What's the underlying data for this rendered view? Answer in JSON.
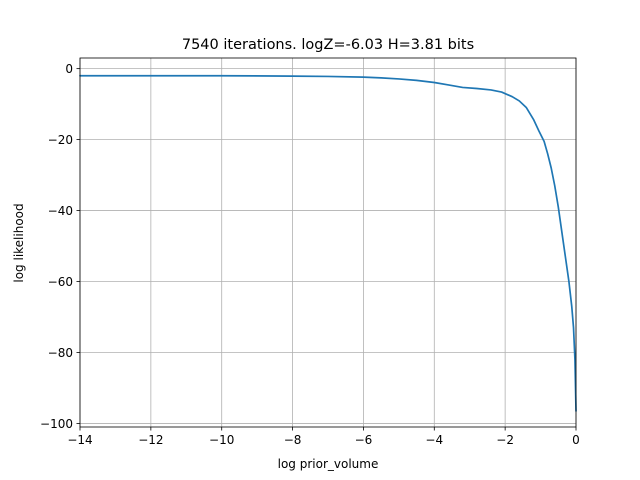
{
  "chart_data": {
    "type": "line",
    "title": "7540 iterations. logZ=-6.03 H=3.81 bits",
    "xlabel": "log prior_volume",
    "ylabel": "log likelihood",
    "xlim": [
      -14,
      0
    ],
    "ylim": [
      -101,
      3
    ],
    "xticks": [
      -14,
      -12,
      -10,
      -8,
      -6,
      -4,
      -2,
      0
    ],
    "yticks": [
      0,
      -20,
      -40,
      -60,
      -80,
      -100
    ],
    "grid": true,
    "color": "#1f77b4",
    "series": [
      {
        "x": [
          -14,
          -12,
          -10,
          -8,
          -7,
          -6,
          -5.5,
          -5,
          -4.5,
          -4,
          -3.6,
          -3.2,
          -2.8,
          -2.4,
          -2.1,
          -1.8,
          -1.6,
          -1.4,
          -1.2,
          -1.05,
          -0.9,
          -0.8,
          -0.7,
          -0.6,
          -0.5,
          -0.4,
          -0.3,
          -0.2,
          -0.12,
          -0.07,
          -0.03,
          0
        ],
        "y": [
          -2,
          -2,
          -2,
          -2.1,
          -2.2,
          -2.4,
          -2.6,
          -2.9,
          -3.3,
          -3.9,
          -4.6,
          -5.3,
          -5.6,
          -6.0,
          -6.6,
          -7.9,
          -9.1,
          -11.0,
          -14.3,
          -17.5,
          -20.5,
          -24.0,
          -28.0,
          -33.0,
          -39.0,
          -46.0,
          -53.0,
          -60.0,
          -67.0,
          -73.0,
          -82.0,
          -96.5
        ]
      }
    ]
  }
}
